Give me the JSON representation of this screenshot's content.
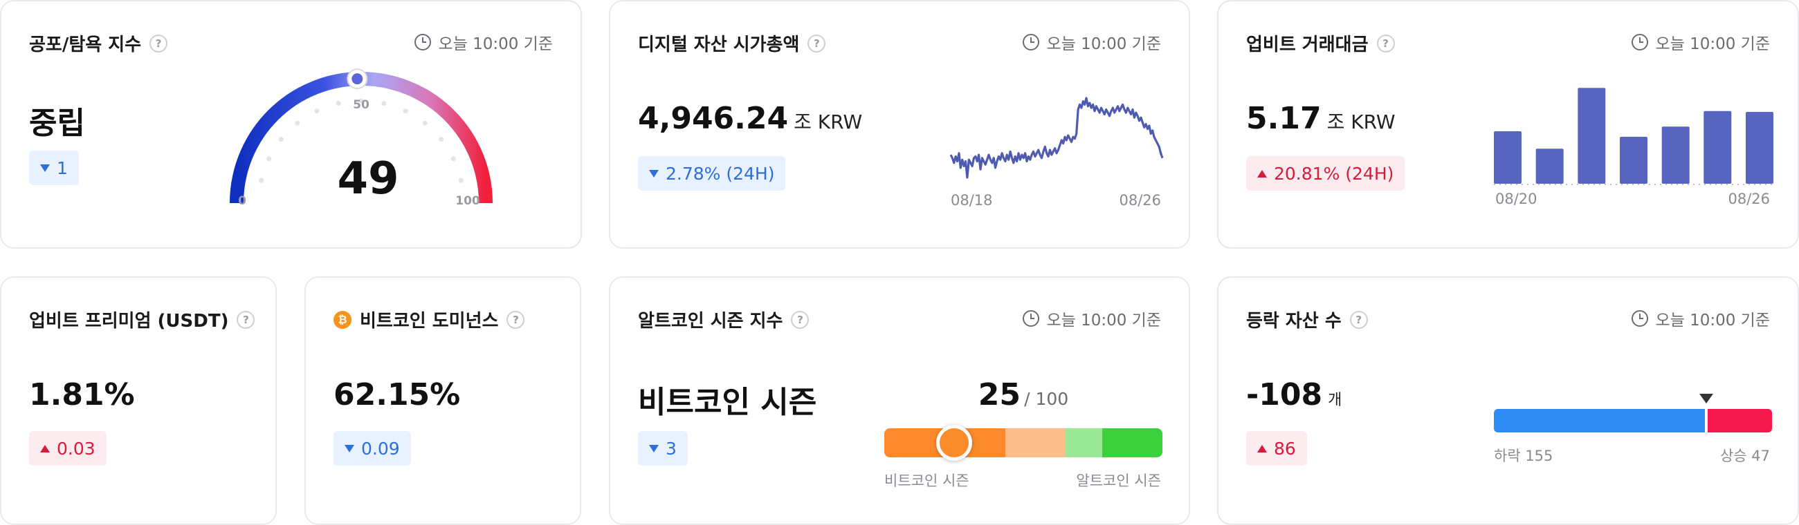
{
  "common": {
    "time_label": "오늘 10:00 기준",
    "help_glyph": "?",
    "btc_glyph": "₿"
  },
  "fear_greed": {
    "title": "공포/탐욕 지수",
    "status": "중립",
    "change": "1",
    "value": "49",
    "gauge_min": "0",
    "gauge_mid": "50",
    "gauge_max": "100",
    "level": 49
  },
  "market_cap": {
    "title": "디지털 자산 시가총액",
    "value": "4,946.24",
    "unit": "조 KRW",
    "change": "2.78% (24H)",
    "x_start": "08/18",
    "x_end": "08/26",
    "line_color": "#4e5bb0"
  },
  "volume": {
    "title": "업비트 거래대금",
    "value": "5.17",
    "unit": "조 KRW",
    "change": "20.81% (24H)",
    "x_start": "08/20",
    "x_end": "08/26",
    "bar_color": "#5865c0"
  },
  "premium": {
    "title": "업비트 프리미엄 (USDT)",
    "value": "1.81%",
    "change": "0.03"
  },
  "dominance": {
    "title": "비트코인 도미넌스",
    "value": "62.15%",
    "change": "0.09"
  },
  "altseason": {
    "title": "알트코인 시즌 지수",
    "status": "비트코인 시즌",
    "change": "3",
    "score": "25",
    "score_max": "/ 100",
    "left_label": "비트코인 시즌",
    "right_label": "알트코인 시즌",
    "level": 25
  },
  "updown": {
    "title": "등락 자산 수",
    "value": "-108",
    "unit": "개",
    "change": "86",
    "down_label": "하락 155",
    "up_label": "상승 47",
    "down_count": 155,
    "up_count": 47,
    "down_color": "#2f8cf5",
    "up_color": "#f5184c"
  },
  "chart_data": [
    {
      "type": "line",
      "x_labels": [
        "08/18",
        "08/26"
      ],
      "values": [
        57,
        55,
        52,
        56,
        53,
        58,
        49,
        54,
        50,
        53,
        43,
        54,
        52,
        50,
        55,
        56,
        53,
        57,
        48,
        55,
        53,
        51,
        54,
        57,
        54,
        52,
        55,
        49,
        53,
        56,
        54,
        58,
        55,
        53,
        57,
        54,
        59,
        55,
        52,
        56,
        53,
        58,
        54,
        57,
        55,
        58,
        53,
        56,
        54,
        57,
        59,
        56,
        58,
        60,
        57,
        55,
        59,
        62,
        58,
        56,
        60,
        57,
        59,
        61,
        58,
        60,
        63,
        66,
        64,
        68,
        66,
        69,
        67,
        65,
        68,
        67,
        70,
        85,
        88,
        86,
        90,
        88,
        92,
        87,
        89,
        86,
        88,
        84,
        87,
        85,
        83,
        86,
        84,
        82,
        85,
        83,
        81,
        84,
        86,
        83,
        85,
        87,
        84,
        86,
        88,
        85,
        83,
        86,
        84,
        82,
        85,
        80,
        83,
        81,
        78,
        80,
        77,
        74,
        76,
        73,
        75,
        70,
        72,
        68,
        66,
        64,
        62,
        58,
        55
      ],
      "ylim": [
        40,
        95
      ]
    },
    {
      "type": "bar",
      "x_labels": [
        "08/20",
        "08/26"
      ],
      "values": [
        5.7,
        3.8,
        10.4,
        5.1,
        6.2,
        7.9,
        7.8
      ],
      "ylim": [
        0,
        10.5
      ]
    }
  ]
}
